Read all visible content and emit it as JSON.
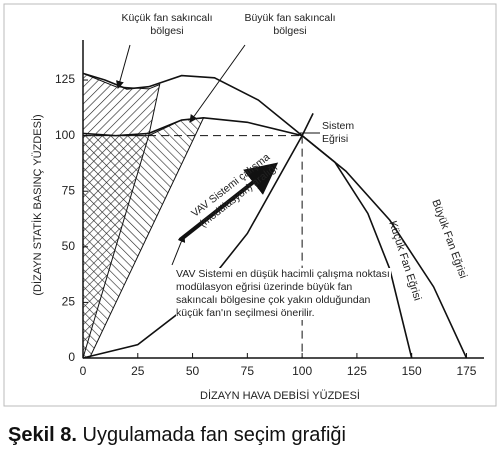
{
  "chart_data": {
    "type": "line",
    "x_label": "DİZAYN HAVA DEBİSİ YÜZDESİ",
    "y_label": "(DİZAYN STATİK BASINÇ YÜZDESİ)",
    "xlim": [
      0,
      183
    ],
    "ylim": [
      0,
      143
    ],
    "xticks": [
      0,
      25,
      50,
      75,
      100,
      125,
      150,
      175
    ],
    "yticks": [
      0,
      25,
      50,
      75,
      100,
      125
    ],
    "series": [
      {
        "name": "Büyük Fan Eğrisi",
        "color": "#111111",
        "x": [
          0,
          10,
          20,
          30,
          45,
          60,
          80,
          100,
          120,
          140,
          160,
          175
        ],
        "values": [
          128,
          125,
          121,
          122,
          127,
          126,
          116,
          100,
          84,
          62,
          32,
          0
        ]
      },
      {
        "name": "Küçük Fan Eğrisi",
        "color": "#111111",
        "x": [
          0,
          15,
          30,
          45,
          55,
          75,
          100,
          115,
          130,
          140,
          150
        ],
        "values": [
          101,
          100,
          101,
          107,
          108,
          106,
          100,
          88,
          65,
          40,
          0
        ]
      },
      {
        "name": "Sistem Eğrisi",
        "color": "#111111",
        "x": [
          0,
          25,
          50,
          75,
          100,
          105
        ],
        "values": [
          0,
          6,
          25,
          56,
          100,
          110
        ]
      }
    ],
    "regions": [
      {
        "label": "Küçük fan sakıncalı bölgesi",
        "x": [
          0,
          0,
          15,
          30,
          35,
          30
        ],
        "values": [
          0,
          128,
          122,
          121,
          123,
          100
        ]
      },
      {
        "label": "Büyük fan sakıncalı bölgesi",
        "x": [
          0,
          0,
          30,
          45,
          55,
          3
        ],
        "values": [
          0,
          100,
          100,
          107,
          108,
          0
        ]
      }
    ],
    "annotations": [
      "VAV Sistemi çalışma (modülasyon) aralığı",
      "VAV Sistemi en düşük hacimli çalışma noktası modülasyon eğrisi üzerinde büyük fan sakıncalı bölgesine çok yakın olduğundan küçük fan'ın seçilmesi önerilir."
    ],
    "caption_label": "Şekil 8.",
    "caption": "Uygulamada fan seçim grafiği"
  }
}
